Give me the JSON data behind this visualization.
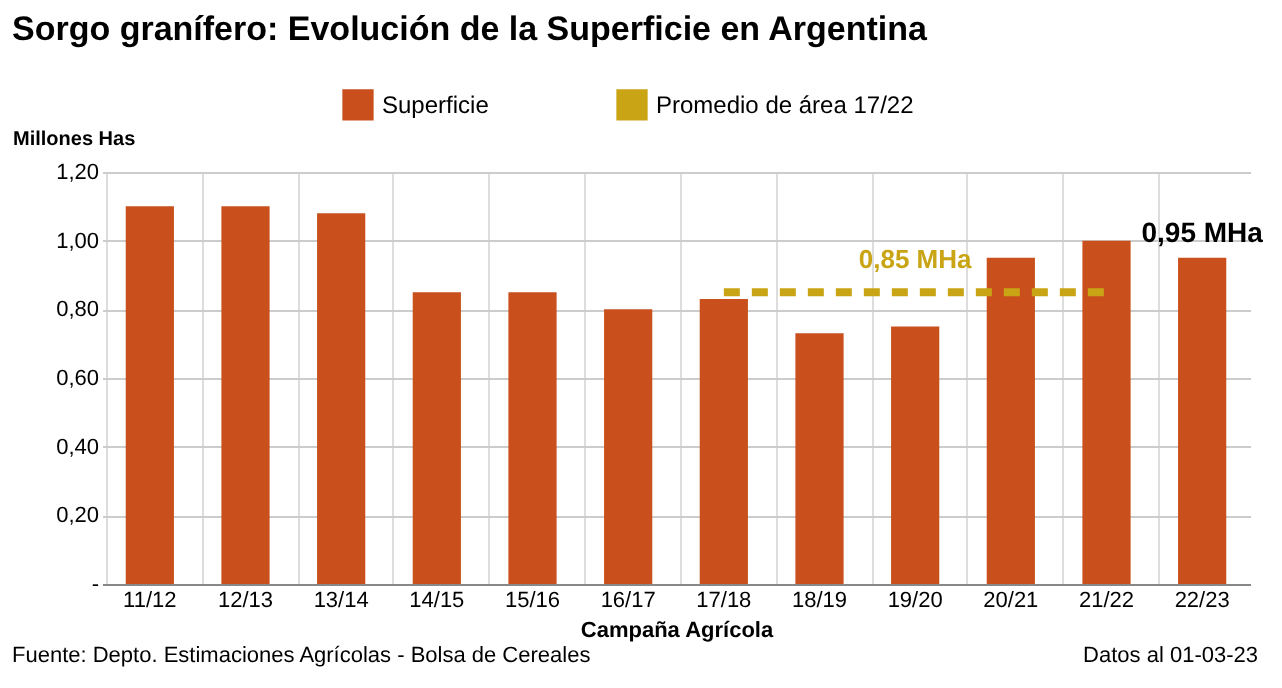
{
  "chart_data": {
    "type": "bar",
    "title": "Sorgo granífero: Evolución de la Superficie en Argentina",
    "ylabel": "Millones Has",
    "xlabel": "Campaña Agrícola",
    "categories": [
      "11/12",
      "12/13",
      "13/14",
      "14/15",
      "15/16",
      "16/17",
      "17/18",
      "18/19",
      "19/20",
      "20/21",
      "21/22",
      "22/23"
    ],
    "series": [
      {
        "name": "Superficie",
        "color": "#c9501c",
        "values": [
          1.1,
          1.1,
          1.08,
          0.85,
          0.85,
          0.8,
          0.83,
          0.73,
          0.75,
          0.95,
          1.0,
          0.95
        ],
        "value_labels": [
          null,
          null,
          null,
          null,
          null,
          null,
          null,
          null,
          null,
          null,
          null,
          "0,95 MHa"
        ]
      },
      {
        "name": "Promedio de área 17/22",
        "type": "line",
        "line_style": "dashed",
        "color": "#c9a516",
        "x": [
          "17/18",
          "18/19",
          "19/20",
          "20/21",
          "21/22"
        ],
        "values": [
          0.85,
          0.85,
          0.85,
          0.85,
          0.85
        ]
      }
    ],
    "ylim": [
      0,
      1.2
    ],
    "yticks": [
      {
        "value": 0,
        "label": "-"
      },
      {
        "value": 0.2,
        "label": "0,20"
      },
      {
        "value": 0.4,
        "label": "0,40"
      },
      {
        "value": 0.6,
        "label": "0,60"
      },
      {
        "value": 0.8,
        "label": "0,80"
      },
      {
        "value": 1.0,
        "label": "1,00"
      },
      {
        "value": 1.2,
        "label": "1,20"
      }
    ],
    "grid": true,
    "legend": "top",
    "marker": "none",
    "annotations": [
      {
        "text": "0,85 MHa",
        "x": "19/20",
        "y": 0.85
      },
      "Fuente: Depto. Estimaciones Agrícolas - Bolsa de Cereales",
      "Datos al 01-03-23"
    ]
  }
}
